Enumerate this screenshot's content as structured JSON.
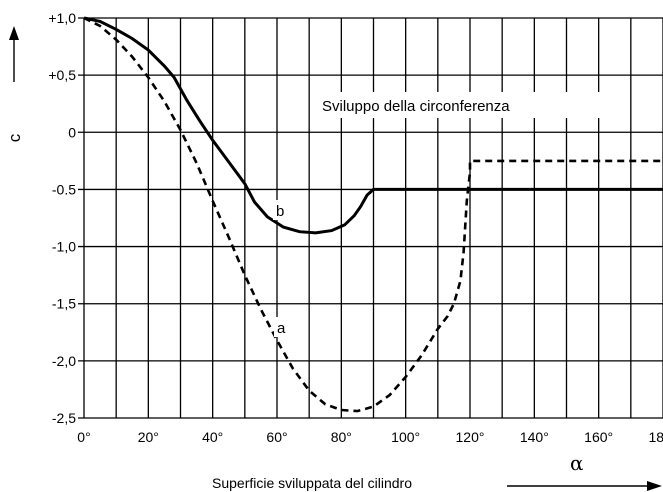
{
  "chart_data": {
    "type": "line",
    "title": "",
    "xlabel": "Superficie sviluppata del cilindro",
    "xsymbol": "α",
    "ysymbol": "c",
    "xlim": [
      0,
      180
    ],
    "ylim": [
      -2.5,
      1.0
    ],
    "grid": true,
    "x_major_ticks": [
      0,
      20,
      40,
      60,
      80,
      100,
      120,
      140,
      160,
      180
    ],
    "x_minor_step": 10,
    "y_ticks": [
      1.0,
      0.5,
      0,
      -0.5,
      -1.0,
      -1.5,
      -2.0,
      -2.5
    ],
    "x_tick_labels": [
      "0°",
      "20°",
      "40°",
      "60°",
      "80°",
      "100°",
      "120°",
      "140°",
      "160°",
      "180°"
    ],
    "y_tick_labels": [
      "+1,0",
      "+0,5",
      "0",
      "-0.5",
      "-1,0",
      "-1,5",
      "-2,0",
      "-2,5"
    ],
    "annotations": {
      "sviluppo": "Sviluppo della circonferenza",
      "label_a": "a",
      "label_b": "b"
    },
    "series": [
      {
        "name": "a",
        "style": "dashed",
        "x": [
          0,
          5,
          10,
          15,
          20,
          25,
          30,
          35,
          40,
          45,
          50,
          55,
          60,
          65,
          70,
          75,
          80,
          85,
          90,
          95,
          100,
          105,
          110,
          113,
          115,
          117,
          118,
          119,
          120,
          120,
          180
        ],
        "y": [
          1.0,
          0.93,
          0.81,
          0.66,
          0.48,
          0.27,
          0.02,
          -0.27,
          -0.6,
          -0.92,
          -1.25,
          -1.55,
          -1.82,
          -2.07,
          -2.26,
          -2.38,
          -2.43,
          -2.44,
          -2.4,
          -2.3,
          -2.14,
          -1.95,
          -1.72,
          -1.61,
          -1.5,
          -1.3,
          -1.05,
          -0.6,
          -0.35,
          -0.25,
          -0.25
        ]
      },
      {
        "name": "b",
        "style": "solid",
        "x": [
          0,
          5,
          10,
          15,
          20,
          25,
          28,
          32,
          36,
          40,
          45,
          50,
          53,
          57,
          62,
          67,
          72,
          77,
          81,
          84,
          86,
          88,
          90,
          100,
          120,
          140,
          160,
          180
        ],
        "y": [
          1.0,
          0.97,
          0.9,
          0.82,
          0.72,
          0.58,
          0.48,
          0.28,
          0.1,
          -0.07,
          -0.26,
          -0.45,
          -0.61,
          -0.74,
          -0.83,
          -0.87,
          -0.88,
          -0.86,
          -0.81,
          -0.73,
          -0.65,
          -0.55,
          -0.5,
          -0.5,
          -0.5,
          -0.5,
          -0.5,
          -0.5
        ]
      }
    ]
  }
}
